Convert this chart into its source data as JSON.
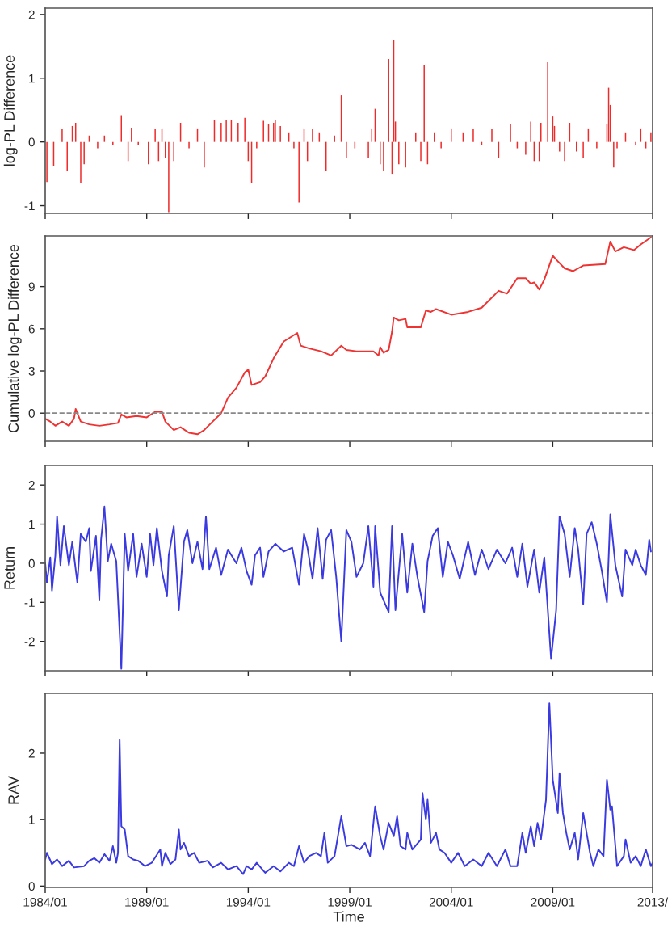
{
  "chart_data": [
    {
      "type": "bar",
      "ylabel": "log-PL Difference",
      "color": "#ee2a2a",
      "tick_labels": "y",
      "xlim": [
        "1984-01",
        "2013-12"
      ],
      "xticks": [
        {
          "value": "1984-01",
          "label": null
        },
        {
          "value": "1989-01",
          "label": null
        },
        {
          "value": "1994-01",
          "label": null
        },
        {
          "value": "1999-01",
          "label": null
        },
        {
          "value": "2004-01",
          "label": null
        },
        {
          "value": "2009-01",
          "label": null
        },
        {
          "value": "2013-12",
          "label": null
        }
      ],
      "ylim": [
        -1.12,
        2.1
      ],
      "yticks": [
        -1,
        0,
        1,
        2
      ],
      "x": [
        "1984-02",
        "1984-06",
        "1984-11",
        "1985-02",
        "1985-05",
        "1985-07",
        "1985-10",
        "1985-12",
        "1986-03",
        "1986-08",
        "1986-12",
        "1987-05",
        "1987-10",
        "1988-02",
        "1988-04",
        "1988-08",
        "1989-02",
        "1989-06",
        "1989-08",
        "1989-10",
        "1989-12",
        "1990-02",
        "1990-05",
        "1990-09",
        "1991-02",
        "1991-07",
        "1991-11",
        "1992-05",
        "1992-09",
        "1992-12",
        "1993-03",
        "1993-07",
        "1993-11",
        "1994-01",
        "1994-03",
        "1994-06",
        "1994-10",
        "1995-01",
        "1995-04",
        "1995-05",
        "1995-08",
        "1996-01",
        "1996-04",
        "1996-07",
        "1996-10",
        "1996-12",
        "1997-03",
        "1997-07",
        "1997-11",
        "1998-04",
        "1998-08",
        "1998-11",
        "1999-04",
        "1999-12",
        "2000-02",
        "2000-04",
        "2000-07",
        "2000-09",
        "2000-12",
        "2001-02",
        "2001-03",
        "2001-04",
        "2001-06",
        "2001-10",
        "2002-04",
        "2002-07",
        "2002-09",
        "2002-11",
        "2003-03",
        "2003-07",
        "2004-01",
        "2004-08",
        "2005-02",
        "2005-07",
        "2006-01",
        "2006-05",
        "2006-12",
        "2007-04",
        "2007-09",
        "2007-12",
        "2008-02",
        "2008-05",
        "2008-06",
        "2008-10",
        "2009-01",
        "2009-02",
        "2009-05",
        "2009-08",
        "2009-11",
        "2010-03",
        "2010-07",
        "2010-10",
        "2011-03",
        "2011-09",
        "2011-10",
        "2011-11",
        "2012-01",
        "2012-03",
        "2012-08",
        "2013-02",
        "2013-05",
        "2013-08",
        "2013-11"
      ],
      "values": [
        -0.63,
        -0.38,
        0.2,
        -0.45,
        0.25,
        0.3,
        -0.65,
        -0.35,
        0.1,
        -0.1,
        0.1,
        -0.05,
        0.42,
        -0.3,
        0.22,
        -0.05,
        -0.35,
        0.2,
        -0.3,
        0.2,
        -0.25,
        -1.1,
        -0.3,
        0.3,
        -0.1,
        0.2,
        -0.4,
        0.35,
        0.3,
        0.35,
        0.35,
        0.3,
        0.38,
        -0.3,
        -0.65,
        -0.1,
        0.33,
        0.28,
        0.3,
        0.35,
        0.25,
        0.15,
        -0.1,
        -0.95,
        0.2,
        -0.3,
        0.2,
        0.15,
        -0.45,
        0.1,
        0.73,
        -0.25,
        -0.1,
        -0.25,
        0.2,
        0.52,
        -0.35,
        -0.45,
        1.3,
        -0.5,
        1.6,
        0.32,
        -0.35,
        -0.4,
        0.15,
        -0.3,
        1.2,
        -0.35,
        0.15,
        -0.1,
        0.2,
        0.15,
        0.2,
        -0.05,
        0.2,
        -0.25,
        0.28,
        -0.1,
        -0.2,
        0.32,
        -0.3,
        -0.3,
        0.3,
        1.25,
        0.4,
        0.25,
        -0.15,
        -0.3,
        0.3,
        -0.15,
        -0.25,
        0.2,
        -0.1,
        0.28,
        0.85,
        0.58,
        -0.4,
        -0.1,
        0.15,
        -0.05,
        0.2,
        -0.1,
        0.15
      ]
    },
    {
      "type": "line",
      "ylabel": "Cumulative log-PL Difference",
      "color": "#ee3333",
      "tick_labels": "y",
      "xlim": [
        "1984-01",
        "2013-12"
      ],
      "xticks": [
        {
          "value": "1984-01",
          "label": null
        },
        {
          "value": "1989-01",
          "label": null
        },
        {
          "value": "1994-01",
          "label": null
        },
        {
          "value": "1999-01",
          "label": null
        },
        {
          "value": "2004-01",
          "label": null
        },
        {
          "value": "2009-01",
          "label": null
        },
        {
          "value": "2013-12",
          "label": null
        }
      ],
      "ylim": [
        -2,
        12.6
      ],
      "yticks": [
        0,
        3,
        6,
        9
      ],
      "ref_lines": [
        {
          "axis": "y",
          "value": 0,
          "color": "#888888",
          "line_style": "dashed"
        }
      ],
      "x": [
        "1984-01",
        "1984-04",
        "1984-07",
        "1984-11",
        "1985-03",
        "1985-06",
        "1985-07",
        "1985-10",
        "1986-03",
        "1986-09",
        "1987-03",
        "1987-08",
        "1987-10",
        "1988-01",
        "1988-07",
        "1989-01",
        "1989-06",
        "1989-10",
        "1989-12",
        "1990-05",
        "1990-09",
        "1991-02",
        "1991-07",
        "1991-11",
        "1992-04",
        "1992-09",
        "1993-01",
        "1993-06",
        "1993-11",
        "1994-01",
        "1994-03",
        "1994-08",
        "1994-11",
        "1995-04",
        "1995-10",
        "1996-06",
        "1996-08",
        "1997-01",
        "1997-08",
        "1998-02",
        "1998-08",
        "1998-11",
        "1999-05",
        "2000-03",
        "2000-06",
        "2000-07",
        "2000-09",
        "2000-12",
        "2001-02",
        "2001-03",
        "2001-06",
        "2001-10",
        "2001-11",
        "2002-07",
        "2002-10",
        "2003-01",
        "2003-04",
        "2004-01",
        "2004-11",
        "2005-07",
        "2006-05",
        "2006-10",
        "2007-04",
        "2007-09",
        "2007-12",
        "2008-02",
        "2008-05",
        "2008-08",
        "2009-01",
        "2009-04",
        "2009-08",
        "2010-01",
        "2010-07",
        "2011-08",
        "2011-11",
        "2012-02",
        "2012-07",
        "2013-01",
        "2013-05",
        "2013-11"
      ],
      "values": [
        -0.4,
        -0.6,
        -0.9,
        -0.6,
        -0.9,
        -0.4,
        0.3,
        -0.6,
        -0.8,
        -0.9,
        -0.8,
        -0.7,
        -0.1,
        -0.3,
        -0.2,
        -0.3,
        0.1,
        0.1,
        -0.6,
        -1.2,
        -1.0,
        -1.4,
        -1.5,
        -1.2,
        -0.6,
        0,
        1.1,
        1.8,
        2.9,
        3.1,
        2.0,
        2.2,
        2.6,
        3.9,
        5.1,
        5.7,
        4.8,
        4.6,
        4.4,
        4.1,
        4.8,
        4.5,
        4.4,
        4.4,
        4.1,
        4.7,
        4.3,
        4.5,
        5.8,
        6.8,
        6.6,
        6.7,
        6.1,
        6.1,
        7.3,
        7.2,
        7.4,
        7.0,
        7.2,
        7.5,
        8.7,
        8.5,
        9.6,
        9.6,
        9.2,
        9.3,
        8.8,
        9.5,
        11.2,
        10.8,
        10.3,
        10.1,
        10.5,
        10.6,
        12.2,
        11.5,
        11.8,
        11.6,
        12.0,
        12.5
      ]
    },
    {
      "type": "line",
      "ylabel": "Return",
      "color": "#3a3ae0",
      "tick_labels": "y",
      "xlim": [
        "1984-01",
        "2013-12"
      ],
      "xticks": [
        {
          "value": "1984-01",
          "label": null
        },
        {
          "value": "1989-01",
          "label": null
        },
        {
          "value": "1994-01",
          "label": null
        },
        {
          "value": "1999-01",
          "label": null
        },
        {
          "value": "2004-01",
          "label": null
        },
        {
          "value": "2009-01",
          "label": null
        },
        {
          "value": "2013-12",
          "label": null
        }
      ],
      "ylim": [
        -2.75,
        2.5
      ],
      "yticks": [
        -2,
        -1,
        0,
        1,
        2
      ],
      "x": [
        "1984-01",
        "1984-02",
        "1984-04",
        "1984-05",
        "1984-07",
        "1984-08",
        "1984-10",
        "1984-12",
        "1985-03",
        "1985-05",
        "1985-08",
        "1985-10",
        "1986-01",
        "1986-03",
        "1986-04",
        "1986-07",
        "1986-09",
        "1986-10",
        "1986-12",
        "1987-02",
        "1987-04",
        "1987-07",
        "1987-10",
        "1987-12",
        "1988-02",
        "1988-05",
        "1988-07",
        "1988-10",
        "1989-01",
        "1989-03",
        "1989-05",
        "1989-07",
        "1989-10",
        "1990-01",
        "1990-02",
        "1990-05",
        "1990-08",
        "1990-11",
        "1991-01",
        "1991-04",
        "1991-07",
        "1991-10",
        "1991-12",
        "1992-02",
        "1992-06",
        "1992-09",
        "1993-01",
        "1993-06",
        "1993-09",
        "1993-12",
        "1994-03",
        "1994-05",
        "1994-08",
        "1994-10",
        "1995-01",
        "1995-05",
        "1995-10",
        "1996-03",
        "1996-07",
        "1996-10",
        "1996-12",
        "1997-03",
        "1997-06",
        "1997-09",
        "1997-11",
        "1998-02",
        "1998-05",
        "1998-08",
        "1998-11",
        "1999-02",
        "1999-05",
        "1999-09",
        "1999-12",
        "2000-03",
        "2000-04",
        "2000-07",
        "2000-12",
        "2001-02",
        "2001-04",
        "2001-08",
        "2001-11",
        "2002-02",
        "2002-05",
        "2002-09",
        "2002-11",
        "2003-02",
        "2003-05",
        "2003-08",
        "2003-11",
        "2004-02",
        "2004-06",
        "2004-11",
        "2005-03",
        "2005-07",
        "2005-11",
        "2006-04",
        "2006-09",
        "2007-01",
        "2007-04",
        "2007-07",
        "2007-10",
        "2008-02",
        "2008-05",
        "2008-08",
        "2008-12",
        "2009-03",
        "2009-05",
        "2009-08",
        "2009-11",
        "2010-02",
        "2010-04",
        "2010-07",
        "2010-09",
        "2010-12",
        "2011-03",
        "2011-06",
        "2011-09",
        "2011-11",
        "2012-02",
        "2012-06",
        "2012-08",
        "2012-12",
        "2013-02",
        "2013-05",
        "2013-08",
        "2013-10",
        "2013-11"
      ],
      "values": [
        0,
        -0.5,
        0.15,
        -0.7,
        0.2,
        1.2,
        -0.05,
        0.95,
        -0.05,
        0.55,
        -0.5,
        0.75,
        0.55,
        0.9,
        -0.2,
        0.7,
        -0.95,
        0.6,
        1.45,
        0.05,
        0.5,
        0.05,
        -2.7,
        0.75,
        -0.2,
        0.75,
        -0.35,
        0.5,
        -0.35,
        0.75,
        -0.05,
        0.9,
        -0.2,
        -0.85,
        0.2,
        0.95,
        -1.2,
        0.55,
        0.85,
        0,
        0.55,
        -0.15,
        1.2,
        -0.15,
        0.4,
        -0.3,
        0.35,
        0,
        0.4,
        -0.2,
        -0.55,
        0.2,
        0.4,
        -0.35,
        0.3,
        0.5,
        0.3,
        0.4,
        -0.55,
        0.75,
        0.4,
        -0.4,
        0.9,
        -0.4,
        0.6,
        0.85,
        -0.35,
        -2.0,
        0.85,
        0.55,
        -0.35,
        0,
        0.95,
        -0.6,
        0.95,
        -0.75,
        -1.25,
        0.95,
        -1.2,
        0.75,
        -0.75,
        0.5,
        -0.35,
        -1.25,
        0.05,
        0.7,
        0.9,
        -0.35,
        0.55,
        0.2,
        -0.4,
        0.55,
        -0.3,
        0.35,
        -0.15,
        0.35,
        0,
        0.4,
        -0.35,
        0.5,
        -0.6,
        0.35,
        -0.75,
        0.15,
        -2.45,
        -1.2,
        1.2,
        0.75,
        -0.35,
        0.9,
        0.35,
        -1.05,
        0.75,
        1.05,
        0.5,
        -0.2,
        -1.0,
        1.25,
        -0.05,
        -0.85,
        0.35,
        -0.05,
        0.35,
        -0.05,
        -0.3,
        0.6,
        0.3
      ]
    },
    {
      "type": "line",
      "xlabel": "Time",
      "ylabel": "RAV",
      "color": "#3a3ae0",
      "xlim": [
        "1984-01",
        "2013-12"
      ],
      "xticks": [
        {
          "value": "1984-01",
          "label": "1984/01"
        },
        {
          "value": "1989-01",
          "label": "1989/01"
        },
        {
          "value": "1994-01",
          "label": "1994/01"
        },
        {
          "value": "1999-01",
          "label": "1999/01"
        },
        {
          "value": "2004-01",
          "label": "2004/01"
        },
        {
          "value": "2009-01",
          "label": "2009/01"
        },
        {
          "value": "2013-12",
          "label": "2013/"
        }
      ],
      "ylim": [
        -0.02,
        2.9
      ],
      "yticks": [
        0,
        1,
        2
      ],
      "x": [
        "1984-01",
        "1984-02",
        "1984-05",
        "1984-08",
        "1984-11",
        "1985-03",
        "1985-06",
        "1985-12",
        "1986-03",
        "1986-06",
        "1986-09",
        "1986-12",
        "1987-03",
        "1987-05",
        "1987-07",
        "1987-08",
        "1987-09",
        "1987-10",
        "1987-12",
        "1988-02",
        "1988-05",
        "1988-08",
        "1988-12",
        "1989-04",
        "1989-09",
        "1989-10",
        "1989-12",
        "1990-03",
        "1990-06",
        "1990-08",
        "1990-09",
        "1990-11",
        "1991-02",
        "1991-05",
        "1991-08",
        "1992-01",
        "1992-04",
        "1992-09",
        "1993-01",
        "1993-06",
        "1993-10",
        "1993-12",
        "1994-03",
        "1994-06",
        "1994-11",
        "1995-04",
        "1995-08",
        "1996-01",
        "1996-04",
        "1996-07",
        "1996-10",
        "1997-01",
        "1997-05",
        "1997-08",
        "1997-10",
        "1997-12",
        "1998-04",
        "1998-08",
        "1998-11",
        "1999-02",
        "1999-07",
        "1999-10",
        "2000-01",
        "2000-04",
        "2000-07",
        "2000-09",
        "2000-12",
        "2001-03",
        "2001-05",
        "2001-07",
        "2001-10",
        "2001-11",
        "2002-02",
        "2002-07",
        "2002-08",
        "2002-10",
        "2002-11",
        "2003-01",
        "2003-04",
        "2003-06",
        "2003-09",
        "2004-01",
        "2004-05",
        "2004-09",
        "2005-02",
        "2005-07",
        "2005-11",
        "2006-04",
        "2006-09",
        "2006-12",
        "2007-04",
        "2007-07",
        "2007-09",
        "2007-12",
        "2008-02",
        "2008-04",
        "2008-06",
        "2008-09",
        "2008-11",
        "2009-01",
        "2009-04",
        "2009-05",
        "2009-07",
        "2009-09",
        "2009-11",
        "2010-02",
        "2010-04",
        "2010-07",
        "2010-09",
        "2010-11",
        "2011-01",
        "2011-04",
        "2011-07",
        "2011-09",
        "2011-11",
        "2011-12",
        "2012-02",
        "2012-03",
        "2012-07",
        "2012-08",
        "2012-11",
        "2013-02",
        "2013-05",
        "2013-08",
        "2013-11",
        "2013-12"
      ],
      "values": [
        0.4,
        0.5,
        0.33,
        0.4,
        0.3,
        0.38,
        0.28,
        0.3,
        0.38,
        0.42,
        0.35,
        0.48,
        0.38,
        0.6,
        0.35,
        0.5,
        2.2,
        0.9,
        0.85,
        0.45,
        0.4,
        0.38,
        0.3,
        0.35,
        0.55,
        0.3,
        0.5,
        0.33,
        0.4,
        0.85,
        0.55,
        0.65,
        0.45,
        0.5,
        0.35,
        0.38,
        0.28,
        0.35,
        0.25,
        0.3,
        0.18,
        0.3,
        0.25,
        0.35,
        0.2,
        0.3,
        0.22,
        0.35,
        0.3,
        0.6,
        0.35,
        0.45,
        0.5,
        0.45,
        0.8,
        0.35,
        0.45,
        1.05,
        0.6,
        0.62,
        0.55,
        0.65,
        0.45,
        1.2,
        0.75,
        0.55,
        0.95,
        0.75,
        1.05,
        0.6,
        0.55,
        0.8,
        0.55,
        0.7,
        1.4,
        1.0,
        1.3,
        0.65,
        0.8,
        0.55,
        0.5,
        0.35,
        0.5,
        0.3,
        0.4,
        0.3,
        0.5,
        0.3,
        0.55,
        0.3,
        0.3,
        0.8,
        0.5,
        0.9,
        0.6,
        0.95,
        0.7,
        1.3,
        2.75,
        1.6,
        1.1,
        1.7,
        1.1,
        0.8,
        0.55,
        0.8,
        0.4,
        1.1,
        0.8,
        0.5,
        0.3,
        0.55,
        0.45,
        1.6,
        1.15,
        1.2,
        0.6,
        0.3,
        0.45,
        0.7,
        0.35,
        0.45,
        0.3,
        0.55,
        0.3,
        0.35
      ]
    }
  ]
}
